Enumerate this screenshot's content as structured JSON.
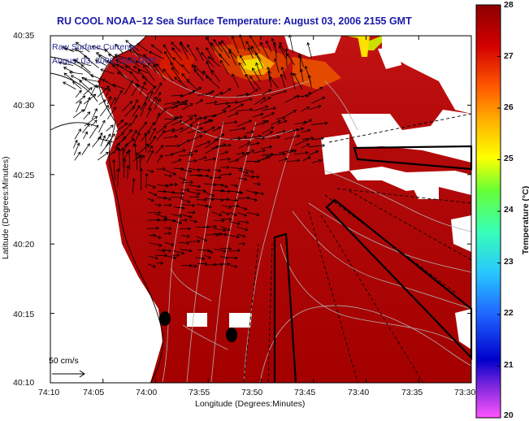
{
  "title": "RU COOL  NOAA–12  Sea Surface Temperature:  August 03, 2006 2155 GMT",
  "legend": {
    "line1": "Raw Surface Currents",
    "line2": "August 03, 2006 2100 GMT"
  },
  "scale_label": "50 cm/s",
  "y_axis": {
    "title": "Latitude (Degrees:Minutes)",
    "ticks": [
      "40:35",
      "40:30",
      "40:25",
      "40:20",
      "40:15",
      "40:10"
    ]
  },
  "x_axis": {
    "title": "Longitude (Degrees:Minutes)",
    "ticks": [
      "74:10",
      "74:05",
      "74:00",
      "73:55",
      "73:50",
      "73:45",
      "73:40",
      "73:35",
      "73:30"
    ]
  },
  "colorbar": {
    "title": "Temperature (°C)",
    "ticks": [
      "28",
      "27",
      "26",
      "25",
      "24",
      "23",
      "22",
      "21",
      "20"
    ],
    "range": [
      20,
      28
    ],
    "colors": [
      "#ff55ff",
      "#7a2be0",
      "#0000d0",
      "#1f64ff",
      "#27c6ff",
      "#37ffb8",
      "#66ff36",
      "#ffff00",
      "#ffb000",
      "#ff5a00",
      "#d40000",
      "#8c0000"
    ]
  },
  "colors": {
    "sea": "#a80000",
    "land": "#ffffff",
    "title": "#1a1aa8"
  }
}
